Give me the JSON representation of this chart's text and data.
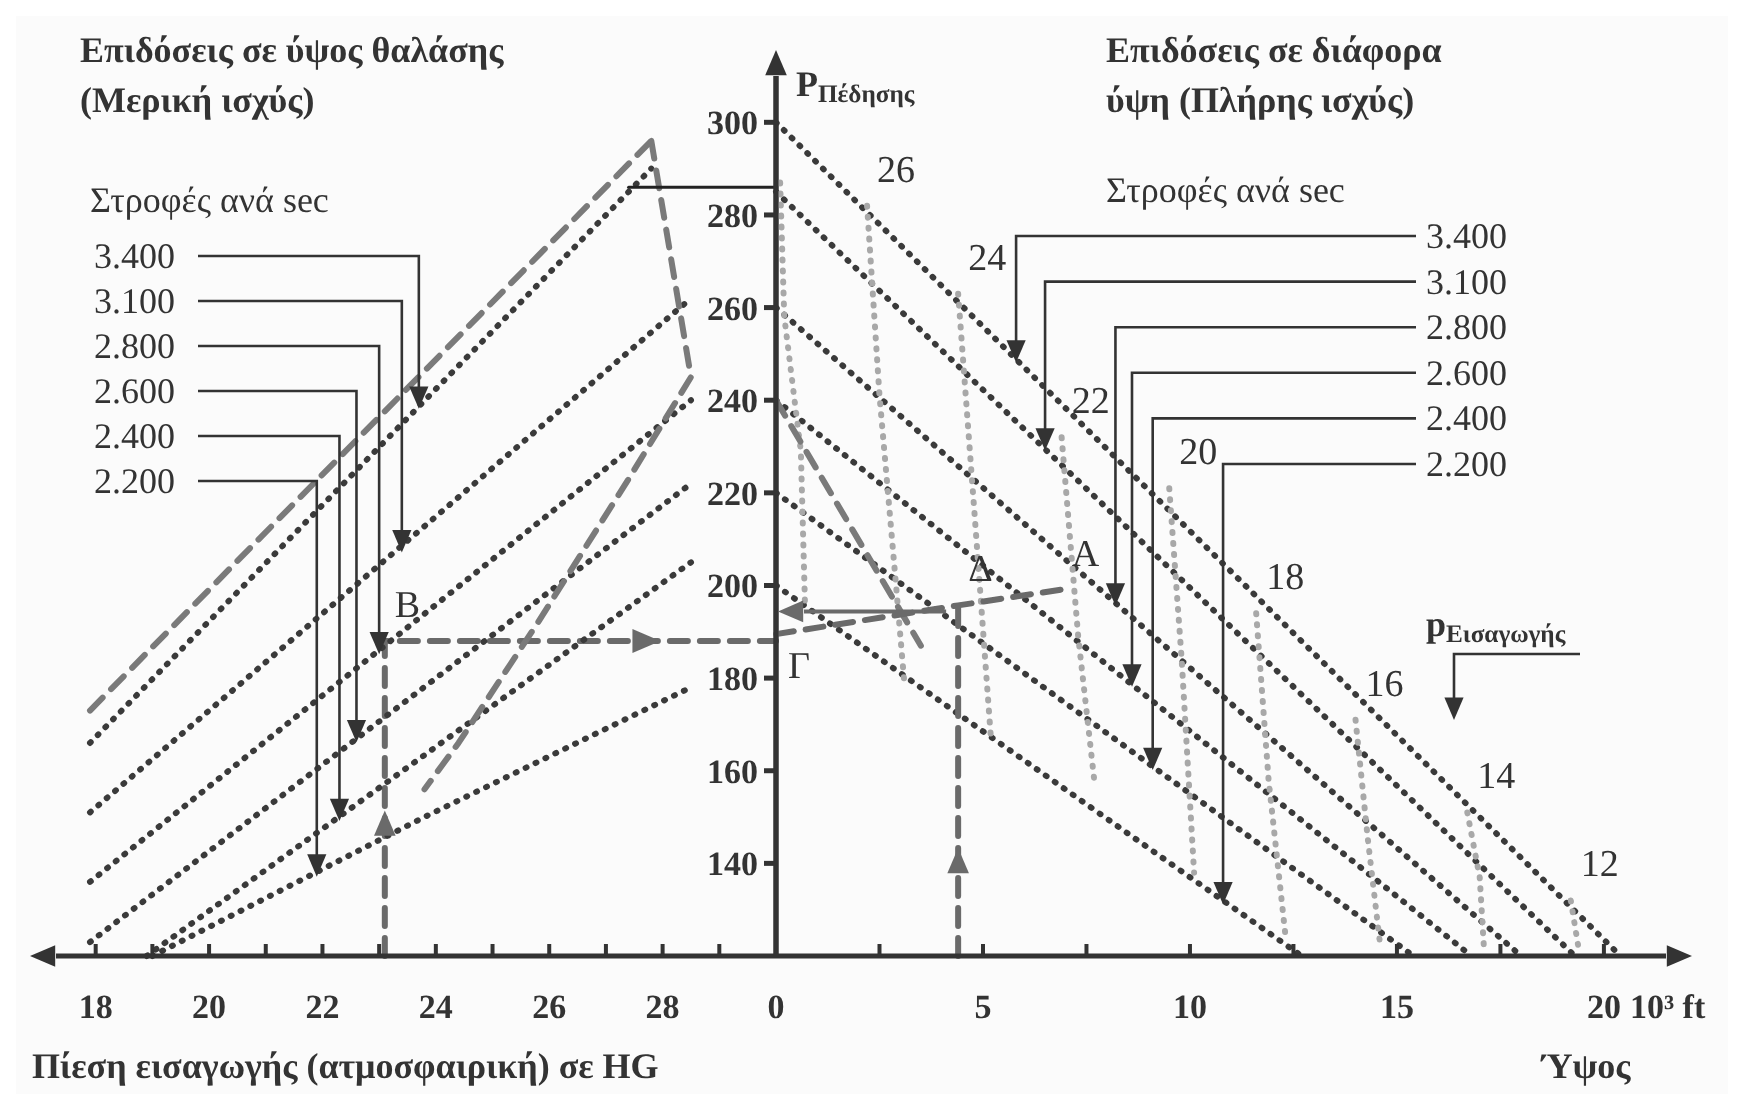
{
  "chart_data": [
    {
      "type": "line",
      "title": "Επιδόσεις σε ύψος θαλάσης\n(Μερική ισχύς)",
      "xlabel": "Πίεση εισαγωγής (ατμοσφαιρική) σε HG",
      "tick_labels": "x",
      "xlim": [
        17.3,
        30
      ],
      "ylim": [
        120,
        310
      ],
      "xticks": [
        18,
        {
          "value": 19,
          "label": null
        },
        20,
        {
          "value": 21,
          "label": null
        },
        22,
        {
          "value": 23,
          "label": null
        },
        24,
        {
          "value": 25,
          "label": null
        },
        26,
        {
          "value": 27,
          "label": null
        },
        28,
        {
          "value": 29,
          "label": null
        }
      ],
      "series": [
        {
          "color": "#6a6a6a",
          "line_style": "dashed",
          "x": [
            23.1,
            23.1,
            30
          ],
          "values": [
            120,
            188,
            188
          ]
        },
        {
          "color": "#3a3a3a",
          "line_style": "dotted",
          "x": [
            17.9,
            27.8
          ],
          "values": [
            166,
            290
          ]
        },
        {
          "color": "#3a3a3a",
          "line_style": "dotted",
          "x": [
            17.9,
            28.5
          ],
          "values": [
            151,
            262
          ]
        },
        {
          "color": "#3a3a3a",
          "line_style": "dotted",
          "x": [
            17.9,
            28.5
          ],
          "values": [
            136,
            240
          ]
        },
        {
          "color": "#3a3a3a",
          "line_style": "dotted",
          "x": [
            17.9,
            28.5
          ],
          "values": [
            123,
            222
          ]
        },
        {
          "color": "#3a3a3a",
          "line_style": "dotted",
          "x": [
            18.9,
            28.5
          ],
          "values": [
            120,
            205
          ]
        },
        {
          "color": "#3a3a3a",
          "line_style": "dotted",
          "x": [
            19.0,
            23.8,
            28.5
          ],
          "values": [
            120,
            150,
            178
          ]
        },
        {
          "color": "#7a7a7a",
          "line_style": "dashed",
          "x": [
            17.9,
            27.8
          ],
          "values": [
            173,
            296
          ]
        },
        {
          "color": "#7a7a7a",
          "line_style": "dashed",
          "x": [
            27.8,
            28.5,
            27.4,
            25.8,
            24.4,
            23.8
          ],
          "values": [
            296,
            245,
            223,
            192,
            166,
            156
          ]
        },
        {
          "color": "#222222",
          "line_style": "solid",
          "x": [
            27.4,
            30
          ],
          "values": [
            286,
            286
          ]
        }
      ],
      "annotations": [
        "Στροφές ανά sec",
        {
          "text": "3.400",
          "x": 23.7,
          "y": 239
        },
        {
          "text": "3.100",
          "x": 23.4,
          "y": 208
        },
        {
          "text": "2.800",
          "x": 23.0,
          "y": 186
        },
        {
          "text": "2.600",
          "x": 22.6,
          "y": 167
        },
        {
          "text": "2.400",
          "x": 22.3,
          "y": 150
        },
        {
          "text": "2.200",
          "x": 21.9,
          "y": 138
        },
        {
          "text": "B",
          "x": 23.1,
          "y": 188
        }
      ]
    },
    {
      "type": "line",
      "title": "Επιδόσεις σε διάφορα\nύψη (Πλήρης ισχύς)",
      "xlabel": "10³ ft\nΎψος",
      "ylabel": "P$_{Πέδησης}$",
      "xlim": [
        0,
        21.5
      ],
      "ylim": [
        120,
        310
      ],
      "xticks": [
        0,
        {
          "value": 2.5,
          "label": null
        },
        5,
        {
          "value": 7.5,
          "label": null
        },
        10,
        {
          "value": 12.5,
          "label": null
        },
        15,
        {
          "value": 17.5,
          "label": null
        },
        20
      ],
      "yticks": [
        140,
        160,
        180,
        200,
        220,
        240,
        260,
        280,
        300
      ],
      "series": [
        {
          "color": "#3a3a3a",
          "line_style": "dotted",
          "x": [
            0,
            20.4
          ],
          "values": [
            300,
            120
          ]
        },
        {
          "color": "#3a3a3a",
          "line_style": "dotted",
          "x": [
            0,
            19.3
          ],
          "values": [
            285,
            120
          ]
        },
        {
          "color": "#3a3a3a",
          "line_style": "dotted",
          "x": [
            0,
            18.0
          ],
          "values": [
            260,
            120
          ]
        },
        {
          "color": "#3a3a3a",
          "line_style": "dotted",
          "x": [
            0,
            16.8
          ],
          "values": [
            240,
            120
          ]
        },
        {
          "color": "#3a3a3a",
          "line_style": "dotted",
          "x": [
            0,
            15.4
          ],
          "values": [
            220,
            120
          ]
        },
        {
          "color": "#3a3a3a",
          "line_style": "dotted",
          "x": [
            0,
            12.7
          ],
          "values": [
            200,
            120
          ]
        },
        {
          "color": "#a8a8a8",
          "line_style": "dotted",
          "x": [
            0.1,
            0.2,
            0.6,
            0.7
          ],
          "values": [
            287,
            258,
            229,
            196
          ]
        },
        {
          "color": "#a8a8a8",
          "line_style": "dotted",
          "x": [
            2.2,
            2.5,
            2.9,
            3.1
          ],
          "values": [
            282,
            241,
            200,
            179
          ]
        },
        {
          "color": "#a8a8a8",
          "line_style": "dotted",
          "x": [
            4.4,
            4.8,
            5.2
          ],
          "values": [
            263,
            215,
            166
          ]
        },
        {
          "color": "#a8a8a8",
          "line_style": "dotted",
          "x": [
            6.9,
            7.3,
            7.7
          ],
          "values": [
            232,
            189,
            157
          ]
        },
        {
          "color": "#a8a8a8",
          "line_style": "dotted",
          "x": [
            9.5,
            9.8,
            10.1
          ],
          "values": [
            221,
            184,
            138
          ]
        },
        {
          "color": "#a8a8a8",
          "line_style": "dotted",
          "x": [
            11.6,
            11.9,
            12.3
          ],
          "values": [
            194,
            158,
            125
          ]
        },
        {
          "color": "#a8a8a8",
          "line_style": "dotted",
          "x": [
            14,
            14.3,
            14.6
          ],
          "values": [
            171,
            145,
            122
          ]
        },
        {
          "color": "#a8a8a8",
          "line_style": "dotted",
          "x": [
            16.7,
            17,
            17.1
          ],
          "values": [
            151,
            137,
            122
          ]
        },
        {
          "color": "#a8a8a8",
          "line_style": "dotted",
          "x": [
            19.2,
            19.4
          ],
          "values": [
            132,
            121
          ]
        },
        {
          "color": "#7a7a7a",
          "line_style": "dashed",
          "x": [
            0,
            3.5
          ],
          "values": [
            240,
            187
          ]
        },
        {
          "color": "#6a6a6a",
          "line_style": "dashed",
          "x": [
            0,
            4.4,
            6.9
          ],
          "values": [
            189.5,
            195.7,
            199.1
          ]
        },
        {
          "color": "#6a6a6a",
          "line_style": "dashed",
          "x": [
            4.4,
            4.4
          ],
          "values": [
            120,
            195.7
          ]
        }
      ],
      "annotations": [
        "Στροφές ανά sec",
        {
          "text": "3.400",
          "x": 5.8,
          "y": 249
        },
        {
          "text": "3.100",
          "x": 6.5,
          "y": 230
        },
        {
          "text": "2.800",
          "x": 8.2,
          "y": 196.5
        },
        {
          "text": "2.600",
          "x": 8.6,
          "y": 179
        },
        {
          "text": "2.400",
          "x": 9.1,
          "y": 161
        },
        {
          "text": "2.200",
          "x": 10.8,
          "y": 132
        },
        {
          "text": "Γ",
          "x": 0,
          "y": 189.5
        },
        {
          "text": "Δ",
          "x": 4.4,
          "y": 195.7
        },
        {
          "text": "A",
          "x": 6.9,
          "y": 199.1
        },
        {
          "text": "26",
          "x": 2.2,
          "y": 282
        },
        {
          "text": "24",
          "x": 4.4,
          "y": 263
        },
        {
          "text": "22",
          "x": 6.9,
          "y": 232
        },
        {
          "text": "20",
          "x": 9.5,
          "y": 221
        },
        {
          "text": "18",
          "x": 11.6,
          "y": 194
        },
        {
          "text": "16",
          "x": 14,
          "y": 171
        },
        {
          "text": "14",
          "x": 16.7,
          "y": 151
        },
        {
          "text": "12",
          "x": 19.2,
          "y": 132
        },
        "p$_{Εισαγωγής}$"
      ]
    }
  ]
}
